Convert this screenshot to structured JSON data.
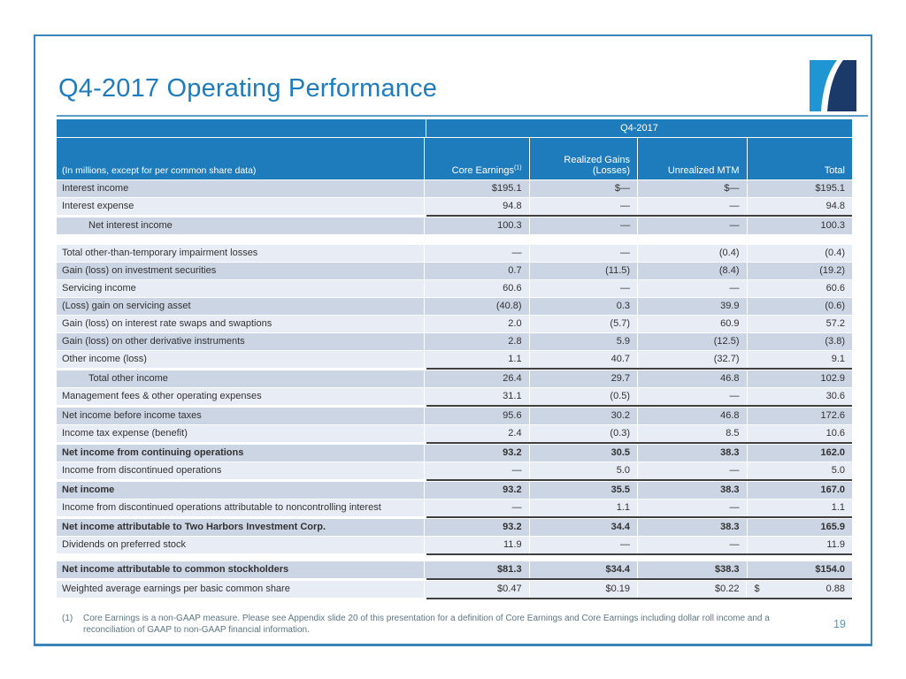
{
  "slide": {
    "title": "Q4-2017 Operating Performance",
    "page_number": "19",
    "footnote_marker": "(1)",
    "footnote_text": "Core Earnings is a non-GAAP measure. Please see Appendix slide 20 of this presentation for a definition of Core Earnings and Core Earnings including dollar roll income and a reconciliation of GAAP to non-GAAP financial information.",
    "logo": {
      "icon": "two-harbors-logo",
      "light_blue": "#2095d3",
      "navy": "#1b3a69"
    }
  },
  "colors": {
    "header_blue": "#1e7cbd",
    "row_dark": "#ccd5e4",
    "row_light": "#e8ecf4",
    "frame_border": "#3d85b8",
    "rule_dark": "#404040",
    "title_blue": "#1e7cbd",
    "footnote_gray": "#5d7684"
  },
  "table": {
    "group_header": "Q4-2017",
    "note_header": "(In millions, except for per common share data)",
    "columns": [
      {
        "label": "Core Earnings",
        "sup": "(1)"
      },
      {
        "label": "Realized Gains (Losses)",
        "sup": ""
      },
      {
        "label": "Unrealized MTM",
        "sup": ""
      },
      {
        "label": "Total",
        "sup": ""
      }
    ],
    "rows": [
      {
        "label": "Interest income",
        "values": [
          "$195.1",
          "$—",
          "$—",
          "$195.1"
        ],
        "shade": "dark"
      },
      {
        "label": "Interest expense",
        "values": [
          "94.8",
          "—",
          "—",
          "94.8"
        ],
        "shade": "light",
        "rule_below": true
      },
      {
        "label": "Net interest income",
        "values": [
          "100.3",
          "—",
          "—",
          "100.3"
        ],
        "shade": "dark",
        "indent": true,
        "gap_below": "large"
      },
      {
        "label": "Total other-than-temporary impairment losses",
        "values": [
          "—",
          "—",
          "(0.4)",
          "(0.4)"
        ],
        "shade": "light"
      },
      {
        "label": "Gain (loss) on investment securities",
        "values": [
          "0.7",
          "(11.5)",
          "(8.4)",
          "(19.2)"
        ],
        "shade": "dark"
      },
      {
        "label": "Servicing income",
        "values": [
          "60.6",
          "—",
          "—",
          "60.6"
        ],
        "shade": "light"
      },
      {
        "label": "(Loss) gain on servicing asset",
        "values": [
          "(40.8)",
          "0.3",
          "39.9",
          "(0.6)"
        ],
        "shade": "dark"
      },
      {
        "label": "Gain (loss) on interest rate swaps and swaptions",
        "values": [
          "2.0",
          "(5.7)",
          "60.9",
          "57.2"
        ],
        "shade": "light"
      },
      {
        "label": "Gain (loss) on other derivative instruments",
        "values": [
          "2.8",
          "5.9",
          "(12.5)",
          "(3.8)"
        ],
        "shade": "dark"
      },
      {
        "label": "Other income (loss)",
        "values": [
          "1.1",
          "40.7",
          "(32.7)",
          "9.1"
        ],
        "shade": "light",
        "rule_below": true
      },
      {
        "label": "Total other income",
        "values": [
          "26.4",
          "29.7",
          "46.8",
          "102.9"
        ],
        "shade": "dark",
        "indent": true
      },
      {
        "label": "Management fees & other operating expenses",
        "values": [
          "31.1",
          "(0.5)",
          "—",
          "30.6"
        ],
        "shade": "light",
        "rule_below": true
      },
      {
        "label": "Net income before income taxes",
        "values": [
          "95.6",
          "30.2",
          "46.8",
          "172.6"
        ],
        "shade": "dark"
      },
      {
        "label": "Income tax expense (benefit)",
        "values": [
          "2.4",
          "(0.3)",
          "8.5",
          "10.6"
        ],
        "shade": "light",
        "rule_below": true
      },
      {
        "label": "Net income from continuing operations",
        "values": [
          "93.2",
          "30.5",
          "38.3",
          "162.0"
        ],
        "shade": "dark",
        "bold": true
      },
      {
        "label": "Income from discontinued operations",
        "values": [
          "—",
          "5.0",
          "—",
          "5.0"
        ],
        "shade": "light",
        "rule_below": true
      },
      {
        "label": "Net income",
        "values": [
          "93.2",
          "35.5",
          "38.3",
          "167.0"
        ],
        "shade": "dark",
        "bold": true
      },
      {
        "label": "Income from discontinued operations attributable to noncontrolling interest",
        "values": [
          "—",
          "1.1",
          "—",
          "1.1"
        ],
        "shade": "light",
        "rule_below": true
      },
      {
        "label": "Net income attributable to Two Harbors Investment Corp.",
        "values": [
          "93.2",
          "34.4",
          "38.3",
          "165.9"
        ],
        "shade": "dark",
        "bold": true
      },
      {
        "label": "Dividends on preferred stock",
        "values": [
          "11.9",
          "—",
          "—",
          "11.9"
        ],
        "shade": "light",
        "rule_below": true,
        "gap_below": "small"
      },
      {
        "label": "Net income attributable to common stockholders",
        "values": [
          "$81.3",
          "$34.4",
          "$38.3",
          "$154.0"
        ],
        "shade": "dark",
        "bold": true,
        "rule_below": true
      },
      {
        "label": "Weighted average earnings per basic common share",
        "values": [
          "$0.47",
          "$0.19",
          "$0.22",
          {
            "prefix": "$",
            "value": "0.88"
          }
        ],
        "shade": "light",
        "rule_below": true
      }
    ]
  }
}
